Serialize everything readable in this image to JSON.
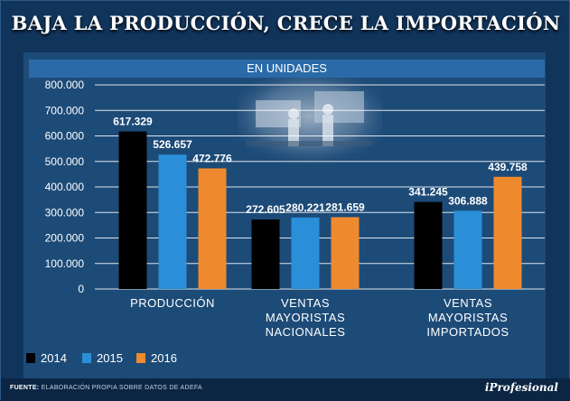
{
  "title": "BAJA LA PRODUCCIÓN, CRECE LA IMPORTACIÓN",
  "subtitle": "EN UNIDADES",
  "source_label": "FUENTE:",
  "source_text": "ELABORACIÓN PROPIA SOBRE DATOS DE ADEFA",
  "brand": "iProfesional",
  "colors": {
    "2014": "#000000",
    "2015": "#2a8fd8",
    "2016": "#ee8a2d",
    "background": "#1d4b78",
    "header": "#2a6aa8"
  },
  "chart_data": {
    "type": "bar",
    "title": "EN UNIDADES",
    "categories": [
      [
        "PRODUCCIÓN"
      ],
      [
        "VENTAS",
        "MAYORISTAS",
        "NACIONALES"
      ],
      [
        "VENTAS",
        "MAYORISTAS",
        "IMPORTADOS"
      ]
    ],
    "series": [
      {
        "name": "2014",
        "color": "#000000",
        "values": [
          617329,
          272605,
          341245
        ],
        "labels": [
          "617.329",
          "272.605",
          "341.245"
        ]
      },
      {
        "name": "2015",
        "color": "#2a8fd8",
        "values": [
          526657,
          280221,
          306888
        ],
        "labels": [
          "526.657",
          "280.221",
          "306.888"
        ]
      },
      {
        "name": "2016",
        "color": "#ee8a2d",
        "values": [
          472776,
          281659,
          439758
        ],
        "labels": [
          "472.776",
          "281.659",
          "439.758"
        ]
      }
    ],
    "yticks": [
      0,
      100000,
      200000,
      300000,
      400000,
      500000,
      600000,
      700000,
      800000
    ],
    "ytick_labels": [
      "0",
      "100.000",
      "200.000",
      "300.000",
      "400.000",
      "500.000",
      "600.000",
      "700.000",
      "800.000"
    ],
    "ylim": [
      0,
      800000
    ],
    "grid": true,
    "legend": "bottom-left"
  }
}
